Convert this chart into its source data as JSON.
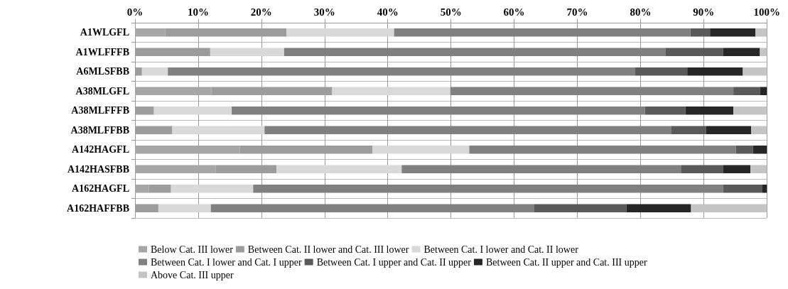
{
  "chart_data": {
    "type": "bar",
    "orientation": "horizontal",
    "stacked": true,
    "categories": [
      "A1WLGFL",
      "A1WLFFFB",
      "A6MLSFBB",
      "A38MLGFL",
      "A38MLFFFB",
      "A38MLFFBB",
      "A142HAGFL",
      "A142HASFBB",
      "A162HAGFL",
      "A162HAFFBB"
    ],
    "series": [
      {
        "name": "Below Cat. III lower",
        "color": "#a6a6a6",
        "values": [
          4.8,
          0,
          0,
          12.1,
          0,
          0,
          16.6,
          12.8,
          2.2,
          0
        ]
      },
      {
        "name": "Between Cat. II lower and Cat. III lower",
        "color": "#9c9c9c",
        "values": [
          19.2,
          11.9,
          1.1,
          19.1,
          3.0,
          5.9,
          21.0,
          9.6,
          3.5,
          3.7
        ]
      },
      {
        "name": "Between Cat. I lower and Cat. II lower",
        "color": "#d9d9d9",
        "values": [
          17.0,
          11.7,
          4.1,
          18.7,
          12.3,
          14.6,
          15.3,
          19.8,
          13.0,
          8.3
        ]
      },
      {
        "name": "Between Cat. I lower and Cat. I upper",
        "color": "#808080",
        "values": [
          46.9,
          60.4,
          73.9,
          44.8,
          65.4,
          64.4,
          42.2,
          44.2,
          74.4,
          51.2
        ]
      },
      {
        "name": "Between Cat. I upper and Cat. II upper",
        "color": "#595959",
        "values": [
          3.1,
          9.1,
          8.3,
          4.2,
          6.4,
          5.5,
          2.7,
          6.7,
          6.2,
          14.6
        ]
      },
      {
        "name": "Between Cat. II upper and Cat. III upper",
        "color": "#262626",
        "values": [
          7.2,
          5.8,
          8.8,
          1.1,
          7.6,
          7.1,
          2.2,
          4.3,
          0.7,
          10.2
        ]
      },
      {
        "name": "Above Cat. III upper",
        "color": "#c4c4c4",
        "values": [
          1.8,
          1.1,
          3.8,
          0,
          5.3,
          2.5,
          0,
          2.6,
          0,
          12.0
        ]
      }
    ],
    "xlim": [
      0,
      100
    ],
    "xticks": [
      {
        "value": 0,
        "label": "0%"
      },
      {
        "value": 10,
        "label": "10%"
      },
      {
        "value": 20,
        "label": "20%"
      },
      {
        "value": 30,
        "label": "30%"
      },
      {
        "value": 40,
        "label": "40%"
      },
      {
        "value": 50,
        "label": "50%"
      },
      {
        "value": 60,
        "label": "60%"
      },
      {
        "value": 70,
        "label": "70%"
      },
      {
        "value": 80,
        "label": "80%"
      },
      {
        "value": 90,
        "label": "90%"
      },
      {
        "value": 100,
        "label": "100%"
      }
    ],
    "grid": true,
    "legend": "bottom"
  }
}
